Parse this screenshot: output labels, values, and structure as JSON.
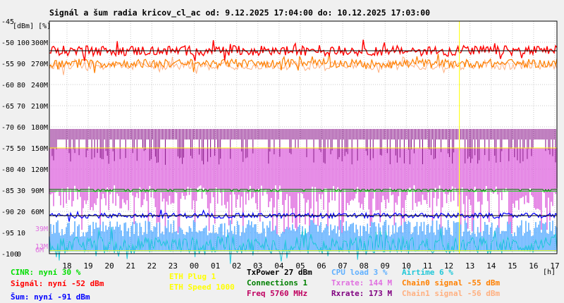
{
  "chart_data": {
    "type": "line",
    "title": "Signál a šum radia kricov_cl_ac od: 9.12.2025 17:04:00 do: 10.12.2025 17:03:00",
    "y_unit_label": "[dBm] [%]",
    "x_unit_label": "[h]",
    "ylim_dbm": [
      -100,
      -45
    ],
    "dbm_ticks": [
      "-45",
      "-50",
      "-55",
      "-60",
      "-65",
      "-70",
      "-75",
      "-80",
      "-85",
      "-90",
      "-95",
      "-100"
    ],
    "percent_ticks": [
      "100",
      "90",
      "80",
      "70",
      "60",
      "50",
      "40",
      "30",
      "20",
      "10",
      "0"
    ],
    "rate_ticks": [
      "300M",
      "270M",
      "240M",
      "210M",
      "180M",
      "150M",
      "120M",
      "90M",
      "60M",
      "30M",
      "0M"
    ],
    "rate_ticks_shown": [
      "300M",
      "270M",
      "240M",
      "210M",
      "180M",
      "150M",
      "120M",
      "90M",
      "60M"
    ],
    "rate_ticks_colored": [
      {
        "label": "39M",
        "value_dbm": -94.0,
        "color": "#e070e0"
      },
      {
        "label": "13M",
        "value_dbm": -98.2,
        "color": "#e070e0"
      },
      {
        "label": "6M",
        "value_dbm": -99.0,
        "color": "#e070e0"
      }
    ],
    "x_ticks": [
      "18",
      "19",
      "20",
      "21",
      "22",
      "23",
      "00",
      "01",
      "02",
      "03",
      "04",
      "05",
      "06",
      "07",
      "08",
      "09",
      "10",
      "11",
      "12",
      "13",
      "14",
      "15",
      "16",
      "17"
    ],
    "grid": true,
    "series": [
      {
        "name": "Signál",
        "color": "#ff0000",
        "mean_dbm": -52,
        "spread": 1.2,
        "ref_dbm": -52
      },
      {
        "name": "Chain0 signal",
        "color": "#ff8000",
        "mean_dbm": -55,
        "spread": 1.0
      },
      {
        "name": "Chain1 signal",
        "color": "#ffb080",
        "mean_dbm": -55.5,
        "spread": 1.0
      },
      {
        "name": "Rxrate",
        "color": "#800080",
        "value_dbm": -70.5,
        "band_to_dbm": -75
      },
      {
        "name": "Txrate",
        "color": "#e070e0",
        "value_dbm": -75,
        "low_dbm": -88
      },
      {
        "name": "Connections",
        "color": "#008000",
        "value_dbm": -84.8
      },
      {
        "name": "CINR",
        "color": "#00dd00",
        "value_dbm": -85.2
      },
      {
        "name": "Šum",
        "color": "#0000ff",
        "mean_dbm": -91,
        "spread": 0.6,
        "ref_dbm": -91
      },
      {
        "name": "CPU load",
        "color": "#60b0ff",
        "mean_dbm": -96,
        "spread": 4
      },
      {
        "name": "Airtime",
        "color": "#20c8d8",
        "mean_dbm": -98,
        "spread": 2
      },
      {
        "name": "ETH Plug",
        "color": "#ffff00",
        "value_dbm": -99.3
      },
      {
        "name": "ETH Speed",
        "color": "#ffff00",
        "value_dbm": -75
      }
    ],
    "marker_hour": "12:30"
  },
  "legend": {
    "cinr": "CINR: nyní 30 %",
    "signal": "Signál: nyní -52 dBm",
    "noise": "Šum: nyní -91 dBm",
    "eth_plug": "ETH Plug 1",
    "eth_speed": "ETH Speed 1000",
    "txpower": "TxPower 27 dBm",
    "connections": "Connections 1",
    "freq": "Freq 5760 MHz",
    "cpu": "CPU load 3 %",
    "txrate": "Txrate: 144 M",
    "rxrate": "Rxrate: 173 M",
    "airtime": "Airtime 6 %",
    "chain0": "Chain0 signal -55 dBm",
    "chain1": "Chain1 signal -56 dBm"
  },
  "colors": {
    "cinr": "#00dd00",
    "signal": "#ff0000",
    "noise": "#0000ff",
    "eth": "#ffff00",
    "txpower": "#000000",
    "connections": "#008000",
    "freq": "#c00060",
    "cpu": "#60b0ff",
    "txrate": "#e070e0",
    "rxrate": "#800080",
    "airtime": "#20c8d8",
    "chain0": "#ff8000",
    "chain1": "#ffb080"
  }
}
